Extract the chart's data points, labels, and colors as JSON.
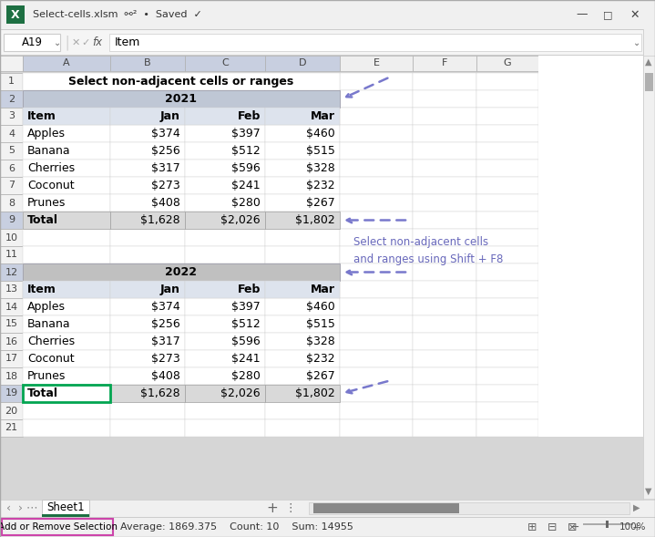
{
  "spreadsheet_title": "Select non-adjacent cells or ranges",
  "year1": "2021",
  "year2": "2022",
  "headers": [
    "Item",
    "Jan",
    "Feb",
    "Mar"
  ],
  "items": [
    "Apples",
    "Banana",
    "Cherries",
    "Coconut",
    "Prunes"
  ],
  "values_jan": [
    374,
    256,
    317,
    273,
    408
  ],
  "values_feb": [
    397,
    512,
    596,
    241,
    280
  ],
  "values_mar": [
    460,
    515,
    328,
    232,
    267
  ],
  "total_jan": 1628,
  "total_feb": 2026,
  "total_mar": 1802,
  "annotation_text": "Select non-adjacent cells\nand ranges using Shift + F8",
  "status_bar_text": "Add or Remove Selection",
  "status_stats": "Average: 1869.375    Count: 10    Sum: 14955",
  "titlebar_text": "Select-cells.xlsm",
  "cell_ref": "A19",
  "formula_text": "Item",
  "arrow_color": "#7878cc",
  "annotation_color": "#6868bb",
  "selected_border": "#00a550",
  "status_border": "#cc44aa",
  "year1_bg": "#bfc7d5",
  "year2_bg": "#c0c0c0",
  "total_bg": "#d9d9d9",
  "header_col_bg": "#dde3ed",
  "col_header_highlight": "#c8cfe0",
  "row_header_bg": "#f2f2f2",
  "row_header_highlight": "#c8cfe0",
  "cell_border": "#d0d0d0",
  "window_bg": "#f2f2f2",
  "scrollbar_track": "#f0f0f0",
  "scrollbar_thumb": "#888888"
}
